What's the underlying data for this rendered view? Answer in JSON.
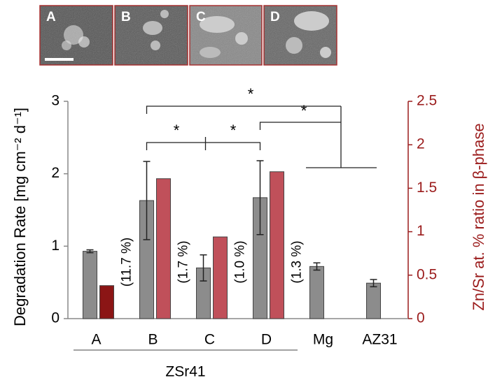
{
  "chart_data": {
    "type": "bar",
    "image_labels": [
      "A",
      "B",
      "C",
      "D"
    ],
    "categories": [
      "A",
      "B",
      "C",
      "D",
      "Mg",
      "AZ31"
    ],
    "group_label": "ZSr41",
    "series": [
      {
        "color": "#8c8c8c",
        "values": [
          0.93,
          1.63,
          0.7,
          1.67,
          0.72,
          0.49
        ],
        "errors": [
          0.02,
          0.54,
          0.18,
          0.51,
          0.05,
          0.05
        ]
      },
      {
        "axis": "y2",
        "colors": [
          "#8b1515",
          "#c0505a",
          "#c0505a",
          "#c0505a",
          null,
          null
        ],
        "values": [
          0.38,
          1.61,
          0.94,
          1.69,
          null,
          null
        ]
      }
    ],
    "annotations": [
      null,
      "(11.7 %)",
      "(1.7 %)",
      "(1.0 %)",
      "(1.3 %)",
      null
    ],
    "significance": [
      "*",
      "*",
      "*",
      "*"
    ],
    "y_label": "Degradation Rate [mg cm⁻² d⁻¹]",
    "y2_label": "Zn/Sr at. % ratio in β-phase",
    "y2_color": "#9b1c1c",
    "ylim": [
      0,
      3
    ],
    "yticks": [
      0,
      1,
      2,
      3
    ],
    "y2lim": [
      0,
      2.5
    ],
    "y2ticks": [
      0,
      0.5,
      1,
      1.5,
      2,
      2.5
    ]
  }
}
